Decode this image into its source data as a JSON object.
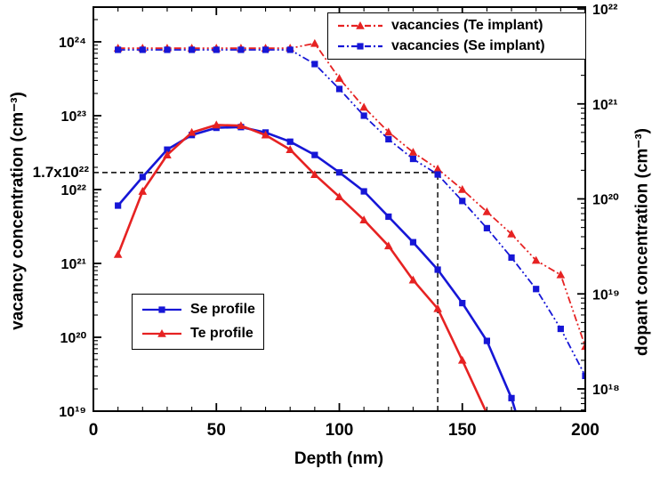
{
  "chart_data": {
    "type": "line",
    "title": "",
    "grid": false,
    "legend_positions": [
      "top-right",
      "center-left"
    ],
    "x_axis": {
      "label": "Depth (nm)",
      "min": 0,
      "max": 200,
      "tick_values": [
        0,
        50,
        100,
        150,
        200
      ],
      "tick_labels": [
        "0",
        "50",
        "100",
        "150",
        "200"
      ],
      "minor_step": 10
    },
    "left_axis": {
      "label": "vacancy concentration (cm⁻³)",
      "scale": "log",
      "min_exp": 19,
      "max_exp": 24,
      "tick_exponents": [
        19,
        20,
        21,
        22,
        23,
        24
      ],
      "tick_labels": [
        "10¹⁹",
        "10²⁰",
        "10²¹",
        "10²²",
        "10²³",
        "10²⁴"
      ]
    },
    "right_axis": {
      "label": "dopant concentration (cm⁻³)",
      "scale": "log",
      "min_exp": 18,
      "max_exp": 22,
      "tick_exponents": [
        18,
        19,
        20,
        21,
        22
      ],
      "tick_labels": [
        "10¹⁸",
        "10¹⁹",
        "10²⁰",
        "10²¹",
        "10²²"
      ]
    },
    "annotation": {
      "label": "1.7x10²²",
      "vacancy_value": 1.7e+22,
      "depth_nm": 140,
      "line_color": "#000000"
    },
    "series": [
      {
        "name": "vacancies (Te implant)",
        "axis": "left",
        "color": "#e62222",
        "marker": "triangle",
        "style": "dashdot",
        "x": [
          10,
          20,
          30,
          40,
          50,
          60,
          70,
          80,
          90,
          100,
          110,
          120,
          130,
          140,
          150,
          160,
          170,
          180,
          190,
          200
        ],
        "y": [
          8.2e+23,
          8.2e+23,
          8.2e+23,
          8.2e+23,
          8.2e+23,
          8.2e+23,
          8.2e+23,
          8.2e+23,
          9.5e+23,
          3.2e+23,
          1.3e+23,
          6e+22,
          3.2e+22,
          1.9e+22,
          1e+22,
          5e+21,
          2.5e+21,
          1.1e+21,
          7e+20,
          7.5e+19
        ]
      },
      {
        "name": "vacancies (Se implant)",
        "axis": "left",
        "color": "#1616d6",
        "marker": "square",
        "style": "dashdot",
        "x": [
          10,
          20,
          30,
          40,
          50,
          60,
          70,
          80,
          90,
          100,
          110,
          120,
          130,
          140,
          150,
          160,
          170,
          180,
          190,
          200
        ],
        "y": [
          7.8e+23,
          7.8e+23,
          7.8e+23,
          7.8e+23,
          7.8e+23,
          7.8e+23,
          7.8e+23,
          7.8e+23,
          5e+23,
          2.3e+23,
          1e+23,
          4.8e+22,
          2.6e+22,
          1.6e+22,
          7e+21,
          3e+21,
          1.2e+21,
          4.5e+20,
          1.3e+20,
          3e+19
        ]
      },
      {
        "name": "Se profile",
        "axis": "right",
        "color": "#1616d6",
        "marker": "square",
        "style": "solid",
        "x": [
          10,
          20,
          30,
          40,
          50,
          60,
          70,
          80,
          90,
          100,
          110,
          120,
          130,
          140,
          150,
          160,
          170,
          175
        ],
        "y": [
          8.5e+19,
          1.7e+20,
          3.3e+20,
          4.7e+20,
          5.6e+20,
          5.7e+20,
          5e+20,
          4e+20,
          2.9e+20,
          1.9e+20,
          1.2e+20,
          6.5e+19,
          3.5e+19,
          1.8e+19,
          8e+18,
          3.2e+18,
          8e+17,
          3e+17
        ]
      },
      {
        "name": "Te profile",
        "axis": "right",
        "color": "#e62222",
        "marker": "triangle",
        "style": "solid",
        "x": [
          10,
          20,
          30,
          40,
          50,
          60,
          70,
          80,
          90,
          100,
          110,
          120,
          130,
          140,
          150,
          160,
          165
        ],
        "y": [
          2.6e+19,
          1.2e+20,
          2.9e+20,
          5e+20,
          6e+20,
          5.9e+20,
          4.7e+20,
          3.3e+20,
          1.8e+20,
          1.05e+20,
          6e+19,
          3.2e+19,
          1.4e+19,
          7e+18,
          2e+18,
          5.5e+17,
          2e+17
        ]
      }
    ]
  }
}
